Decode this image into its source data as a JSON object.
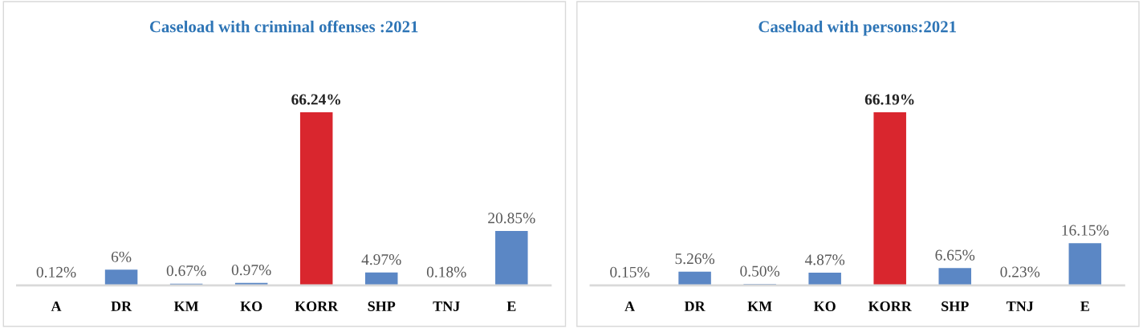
{
  "chart_data": [
    {
      "type": "bar",
      "title": "Caseload with criminal offenses :2021",
      "categories": [
        "A",
        "DR",
        "KM",
        "KO",
        "KORR",
        "SHP",
        "TNJ",
        "E"
      ],
      "values": [
        0.12,
        6,
        0.67,
        0.97,
        66.24,
        4.97,
        0.18,
        20.85
      ],
      "value_labels": [
        "0.12%",
        "6%",
        "0.67%",
        "0.97%",
        "66.24%",
        "4.97%",
        "0.18%",
        "20.85%"
      ],
      "colors": [
        "#5b87c5",
        "#5b87c5",
        "#5b87c5",
        "#5b87c5",
        "#d9262e",
        "#5b87c5",
        "#5b87c5",
        "#5b87c5"
      ]
    },
    {
      "type": "bar",
      "title": "Caseload with persons:2021",
      "categories": [
        "A",
        "DR",
        "KM",
        "KO",
        "KORR",
        "SHP",
        "TNJ",
        "E"
      ],
      "values": [
        0.15,
        5.26,
        0.5,
        4.87,
        66.19,
        6.65,
        0.23,
        16.15
      ],
      "value_labels": [
        "0.15%",
        "5.26%",
        "0.50%",
        "4.87%",
        "66.19%",
        "6.65%",
        "0.23%",
        "16.15%"
      ],
      "colors": [
        "#5b87c5",
        "#5b87c5",
        "#5b87c5",
        "#5b87c5",
        "#d9262e",
        "#5b87c5",
        "#5b87c5",
        "#5b87c5"
      ]
    }
  ]
}
